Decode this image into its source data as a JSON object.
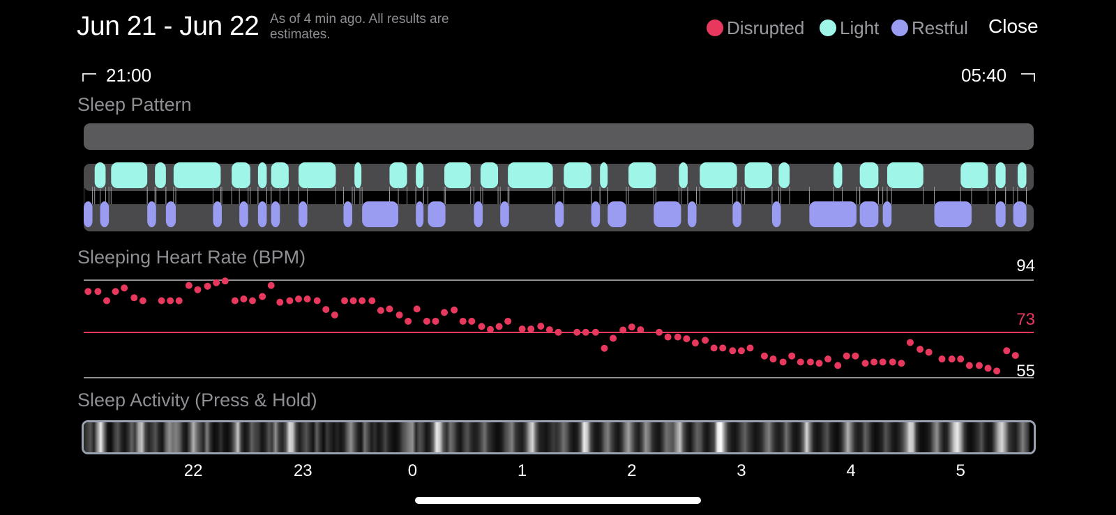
{
  "header": {
    "date_range": "Jun 21 - Jun 22",
    "subtitle": "As of 4 min ago. All results are estimates.",
    "close_label": "Close"
  },
  "legend": [
    {
      "label": "Disrupted",
      "color": "#e8385e"
    },
    {
      "label": "Light",
      "color": "#9ff5e8"
    },
    {
      "label": "Restful",
      "color": "#9a9cf2"
    }
  ],
  "time_range": {
    "start": "21:00",
    "end": "05:40"
  },
  "colors": {
    "disrupted": "#e8385e",
    "light": "#9ff5e8",
    "restful": "#9a9cf2",
    "track": "#4a4a4c",
    "gridline": "#8e8e93"
  },
  "sleep_pattern": {
    "title": "Sleep Pattern",
    "axis_start": "21:00",
    "axis_end": "05:40",
    "light_segments_hours": [
      [
        21.1,
        21.2
      ],
      [
        21.25,
        21.58
      ],
      [
        21.65,
        21.75
      ],
      [
        21.82,
        22.25
      ],
      [
        22.35,
        22.52
      ],
      [
        22.59,
        22.67
      ],
      [
        22.71,
        22.87
      ],
      [
        22.96,
        23.3
      ],
      [
        23.47,
        23.52
      ],
      [
        23.79,
        23.95
      ],
      [
        24.03,
        24.1
      ],
      [
        24.29,
        24.53
      ],
      [
        24.62,
        24.78
      ],
      [
        24.87,
        25.28
      ],
      [
        25.38,
        25.63
      ],
      [
        25.71,
        25.78
      ],
      [
        25.97,
        26.22
      ],
      [
        26.43,
        26.51
      ],
      [
        26.62,
        26.96
      ],
      [
        27.03,
        27.28
      ],
      [
        27.34,
        27.44
      ],
      [
        27.84,
        27.92
      ],
      [
        28.08,
        28.25
      ],
      [
        28.33,
        28.66
      ],
      [
        29.0,
        29.25
      ],
      [
        29.32,
        29.41
      ],
      [
        29.52,
        29.6
      ]
    ],
    "restful_segments_hours": [
      [
        21.0,
        21.08
      ],
      [
        21.15,
        21.23
      ],
      [
        21.58,
        21.66
      ],
      [
        21.75,
        21.84
      ],
      [
        22.18,
        22.26
      ],
      [
        22.42,
        22.5
      ],
      [
        22.59,
        22.67
      ],
      [
        22.71,
        22.79
      ],
      [
        22.96,
        23.04
      ],
      [
        23.37,
        23.45
      ],
      [
        23.54,
        23.87
      ],
      [
        24.03,
        24.1
      ],
      [
        24.14,
        24.3
      ],
      [
        24.56,
        24.64
      ],
      [
        24.8,
        24.88
      ],
      [
        25.3,
        25.38
      ],
      [
        25.63,
        25.71
      ],
      [
        25.78,
        25.95
      ],
      [
        26.2,
        26.45
      ],
      [
        26.51,
        26.59
      ],
      [
        26.92,
        27.0
      ],
      [
        27.28,
        27.36
      ],
      [
        27.62,
        28.05
      ],
      [
        28.08,
        28.25
      ],
      [
        28.29,
        28.37
      ],
      [
        28.76,
        29.1
      ],
      [
        29.32,
        29.41
      ],
      [
        29.48,
        29.6
      ]
    ]
  },
  "heart_rate": {
    "title": "Sleeping Heart Rate (BPM)",
    "max_label": "94",
    "avg_label": "73",
    "min_label": "55",
    "ylim": [
      55,
      94
    ],
    "points": [
      [
        21.04,
        89.2
      ],
      [
        21.13,
        89.2
      ],
      [
        21.21,
        85.5
      ],
      [
        21.29,
        89.2
      ],
      [
        21.37,
        90.6
      ],
      [
        21.46,
        86.7
      ],
      [
        21.54,
        85.5
      ],
      [
        21.71,
        85.5
      ],
      [
        21.79,
        85.5
      ],
      [
        21.87,
        85.5
      ],
      [
        21.96,
        91.6
      ],
      [
        22.04,
        89.9
      ],
      [
        22.13,
        91.3
      ],
      [
        22.21,
        92.7
      ],
      [
        22.29,
        93.4
      ],
      [
        22.38,
        85.5
      ],
      [
        22.46,
        86.2
      ],
      [
        22.54,
        85.5
      ],
      [
        22.63,
        87.2
      ],
      [
        22.71,
        91.6
      ],
      [
        22.79,
        84.9
      ],
      [
        22.88,
        85.5
      ],
      [
        22.96,
        86.2
      ],
      [
        23.04,
        86.2
      ],
      [
        23.13,
        85.5
      ],
      [
        23.21,
        82.0
      ],
      [
        23.29,
        79.8
      ],
      [
        23.38,
        85.5
      ],
      [
        23.46,
        85.5
      ],
      [
        23.54,
        85.5
      ],
      [
        23.63,
        85.5
      ],
      [
        23.71,
        81.6
      ],
      [
        23.79,
        82.2
      ],
      [
        23.88,
        79.8
      ],
      [
        23.96,
        77.3
      ],
      [
        24.04,
        82.2
      ],
      [
        24.13,
        77.3
      ],
      [
        24.21,
        77.3
      ],
      [
        24.29,
        80.8
      ],
      [
        24.38,
        81.8
      ],
      [
        24.46,
        77.3
      ],
      [
        24.54,
        77.3
      ],
      [
        24.63,
        75.2
      ],
      [
        24.71,
        74.0
      ],
      [
        24.79,
        75.2
      ],
      [
        24.87,
        77.3
      ],
      [
        25.0,
        74.2
      ],
      [
        25.08,
        74.2
      ],
      [
        25.17,
        75.3
      ],
      [
        25.25,
        73.9
      ],
      [
        25.33,
        72.9
      ],
      [
        25.5,
        72.9
      ],
      [
        25.58,
        72.9
      ],
      [
        25.67,
        72.9
      ],
      [
        25.75,
        66.5
      ],
      [
        25.83,
        70.5
      ],
      [
        25.92,
        73.8
      ],
      [
        26.0,
        75.0
      ],
      [
        26.08,
        73.9
      ],
      [
        26.25,
        72.9
      ],
      [
        26.33,
        71.0
      ],
      [
        26.42,
        71.0
      ],
      [
        26.5,
        70.3
      ],
      [
        26.58,
        68.6
      ],
      [
        26.67,
        69.7
      ],
      [
        26.75,
        66.6
      ],
      [
        26.83,
        66.6
      ],
      [
        26.92,
        65.5
      ],
      [
        27.0,
        65.5
      ],
      [
        27.08,
        66.6
      ],
      [
        27.21,
        63.4
      ],
      [
        27.29,
        62.2
      ],
      [
        27.38,
        61.0
      ],
      [
        27.46,
        63.4
      ],
      [
        27.54,
        61.0
      ],
      [
        27.63,
        61.0
      ],
      [
        27.71,
        60.5
      ],
      [
        27.79,
        62.2
      ],
      [
        27.88,
        59.6
      ],
      [
        27.96,
        63.4
      ],
      [
        28.04,
        63.4
      ],
      [
        28.13,
        60.5
      ],
      [
        28.21,
        61.0
      ],
      [
        28.29,
        61.0
      ],
      [
        28.38,
        61.0
      ],
      [
        28.46,
        60.5
      ],
      [
        28.54,
        68.8
      ],
      [
        28.63,
        66.1
      ],
      [
        28.71,
        64.9
      ],
      [
        28.83,
        62.2
      ],
      [
        28.92,
        62.2
      ],
      [
        29.0,
        62.2
      ],
      [
        29.08,
        59.6
      ],
      [
        29.17,
        59.6
      ],
      [
        29.25,
        58.5
      ],
      [
        29.33,
        57.4
      ],
      [
        29.42,
        65.5
      ],
      [
        29.5,
        63.6
      ]
    ]
  },
  "sleep_activity": {
    "title": "Sleep Activity (Press & Hold)",
    "intensity": [
      0.3,
      0.4,
      0.5,
      0.3,
      0.7,
      0.95,
      0.6,
      0.2,
      0.15,
      0.4,
      0.5,
      0.3,
      0.2,
      0.35,
      0.55,
      0.4,
      0.75,
      0.85,
      0.45,
      0.3,
      0.4,
      0.5,
      0.3,
      0.2,
      0.55,
      0.7,
      0.6,
      0.65,
      0.55,
      0.3,
      0.2,
      0.5,
      0.8,
      0.6,
      0.45,
      0.3,
      0.65,
      0.35,
      0.15,
      0.2,
      0.35,
      0.2,
      0.15,
      0.3,
      0.55,
      0.85,
      0.4,
      0.2,
      0.3,
      0.55,
      0.45,
      0.4,
      0.2,
      0.3,
      0.5,
      0.4,
      0.7,
      0.4,
      0.3,
      0.5,
      0.9,
      0.85,
      0.45,
      0.25,
      0.4,
      0.5,
      0.35,
      0.2,
      0.55,
      0.35,
      0.15,
      0.4,
      0.3,
      0.2,
      0.3,
      0.2,
      0.3,
      0.55,
      0.7,
      0.5,
      0.3,
      0.2,
      0.6,
      0.45,
      0.25,
      0.35,
      0.2,
      0.3,
      0.45,
      0.3,
      0.2,
      0.15,
      0.25,
      0.45,
      0.55,
      0.65,
      0.7,
      0.3,
      0.5,
      0.4,
      0.2,
      0.3,
      0.55,
      0.95,
      0.85,
      0.5,
      0.35,
      0.6,
      0.5,
      0.3,
      0.2,
      0.4,
      0.5,
      0.35,
      0.25,
      0.3,
      0.45,
      0.6,
      0.4,
      0.3,
      0.2,
      0.15,
      0.25,
      0.45,
      0.55,
      0.65,
      0.4,
      0.3,
      0.25,
      0.45,
      0.75,
      0.9,
      0.55,
      0.3,
      0.25,
      0.2,
      0.3,
      0.4,
      0.35,
      0.45,
      0.6,
      0.5,
      0.3,
      0.2,
      0.25,
      0.5,
      0.95,
      0.85,
      0.45,
      0.25,
      0.2,
      0.3,
      0.55,
      0.65,
      0.45,
      0.3,
      0.2,
      0.35,
      0.6,
      0.75,
      0.55,
      0.35,
      0.25,
      0.45,
      0.7,
      0.6,
      0.35,
      0.25,
      0.2,
      0.4,
      0.6,
      0.55,
      0.5,
      0.7,
      0.85,
      0.5,
      0.3,
      0.2,
      0.4,
      0.55,
      0.5,
      0.3,
      0.2,
      0.35,
      0.45,
      0.95,
      1.0,
      0.7,
      0.4,
      0.25,
      0.2,
      0.3,
      0.45,
      0.55,
      0.4,
      0.3,
      0.2,
      0.25,
      0.35,
      0.55,
      0.65,
      0.45,
      0.3,
      0.25,
      0.35,
      0.6,
      0.45,
      0.25,
      0.2,
      0.3,
      0.55,
      0.9,
      0.6,
      0.3,
      0.2,
      0.25,
      0.4,
      0.5,
      0.3,
      0.2,
      0.15,
      0.3,
      0.55,
      0.8,
      0.6,
      0.35,
      0.25,
      0.3,
      0.55,
      0.45,
      0.25,
      0.15,
      0.2,
      0.3,
      0.5,
      0.4,
      0.25,
      0.2,
      0.3,
      0.45,
      0.65,
      0.9,
      0.85,
      0.4,
      0.2,
      0.15,
      0.2,
      0.3,
      0.55,
      0.7,
      0.45,
      0.25,
      0.3,
      0.6,
      0.85,
      0.95,
      0.75,
      0.4,
      0.2,
      0.15,
      0.25,
      0.35,
      0.5,
      0.3,
      0.2,
      0.25,
      0.55,
      0.8,
      0.9,
      0.7,
      0.4,
      0.3,
      0.25,
      0.45,
      0.65,
      0.5,
      0.3
    ]
  },
  "x_axis": {
    "ticks": [
      {
        "hour": 22,
        "label": "22"
      },
      {
        "hour": 23,
        "label": "23"
      },
      {
        "hour": 24,
        "label": "0"
      },
      {
        "hour": 25,
        "label": "1"
      },
      {
        "hour": 26,
        "label": "2"
      },
      {
        "hour": 27,
        "label": "3"
      },
      {
        "hour": 28,
        "label": "4"
      },
      {
        "hour": 29,
        "label": "5"
      }
    ]
  }
}
